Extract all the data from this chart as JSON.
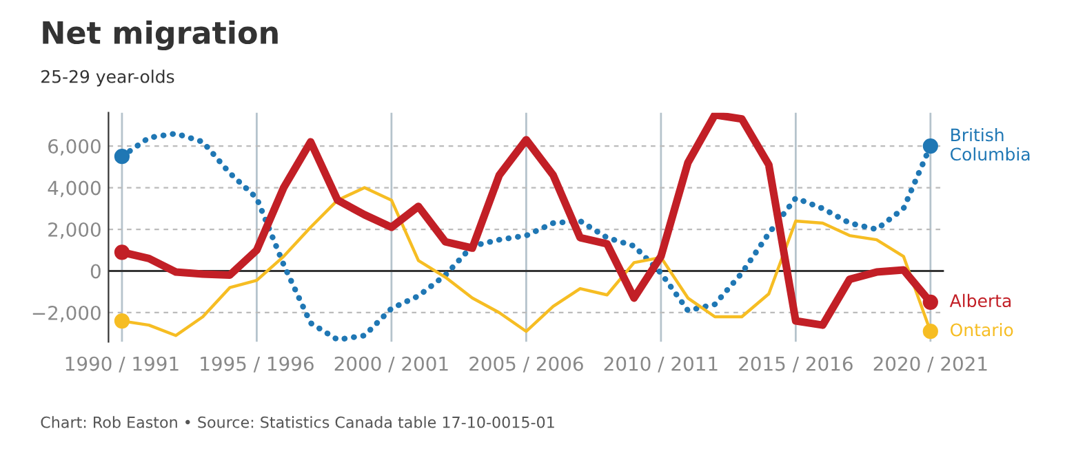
{
  "chart_data": {
    "type": "line",
    "title": "Net migration",
    "subtitle": "25-29 year-olds",
    "categories": [
      "1990 / 1991",
      null,
      null,
      null,
      null,
      "1995 / 1996",
      null,
      null,
      null,
      null,
      "2000 / 2001",
      null,
      null,
      null,
      null,
      "2005 / 2006",
      null,
      null,
      null,
      null,
      "2010 / 2011",
      null,
      null,
      null,
      null,
      "2015 / 2016",
      null,
      null,
      null,
      null,
      "2020 / 2021"
    ],
    "series": [
      {
        "name": "British Columbia",
        "color": "#1f77b4",
        "line_style": "dotted",
        "values": [
          5500,
          6400,
          6600,
          6200,
          4700,
          3500,
          300,
          -2500,
          -3300,
          -3100,
          -1800,
          -1200,
          -200,
          1200,
          1500,
          1700,
          2300,
          2400,
          1600,
          1200,
          -100,
          -1900,
          -1600,
          -100,
          1800,
          3500,
          3000,
          2300,
          2000,
          3000,
          6000
        ]
      },
      {
        "name": "Alberta",
        "color": "#c21f26",
        "line_style": "solid",
        "values": [
          900,
          600,
          -50,
          -150,
          -200,
          1000,
          4000,
          6200,
          3400,
          2700,
          2100,
          3100,
          1400,
          1100,
          4600,
          6300,
          4600,
          1600,
          1300,
          -1300,
          700,
          5200,
          7500,
          7300,
          5100,
          -2400,
          -2600,
          -400,
          -50,
          50,
          -1500
        ]
      },
      {
        "name": "Ontario",
        "color": "#f6bd23",
        "line_style": "solid",
        "values": [
          -2400,
          -2600,
          -3100,
          -2200,
          -800,
          -450,
          700,
          2100,
          3400,
          4000,
          3400,
          500,
          -300,
          -1300,
          -2000,
          -2900,
          -1700,
          -850,
          -1150,
          400,
          650,
          -1300,
          -2200,
          -2200,
          -1100,
          2400,
          2300,
          1700,
          1500,
          700,
          -2900
        ]
      }
    ],
    "ylim": [
      -3400,
      7600
    ],
    "yticks": [
      {
        "value": -2000,
        "label": "−2,000"
      },
      0,
      {
        "value": 2000,
        "label": "2,000"
      },
      {
        "value": 4000,
        "label": "4,000"
      },
      {
        "value": 6000,
        "label": "6,000"
      }
    ],
    "grid": true,
    "legend": false,
    "annotations": [
      "Chart: Rob Easton • Source: Statistics Canada table 17-10-0015-01"
    ]
  }
}
